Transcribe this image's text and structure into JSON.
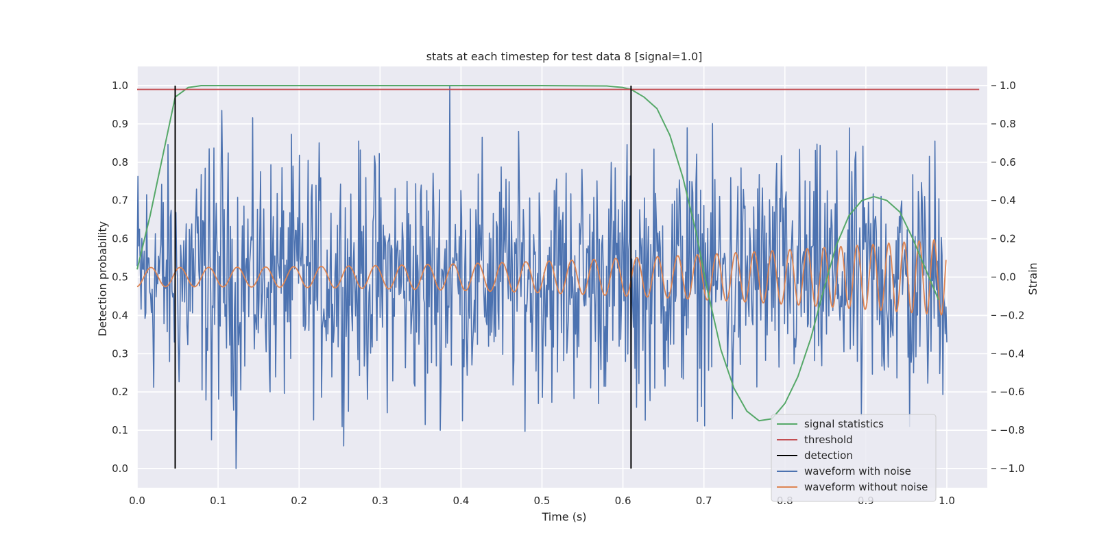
{
  "chart_data": {
    "type": "line",
    "title": "stats at each timestep for test data 8 [signal=1.0]",
    "xlabel": "Time (s)",
    "ylabel_left": "Detection probability",
    "ylabel_right": "Strain",
    "xlim": [
      0.0,
      1.05
    ],
    "ylim_left": [
      -0.05,
      1.05
    ],
    "ylim_right": [
      -1.1,
      1.1
    ],
    "x_ticks": [
      "0.0",
      "0.1",
      "0.2",
      "0.3",
      "0.4",
      "0.5",
      "0.6",
      "0.7",
      "0.8",
      "0.9",
      "1.0"
    ],
    "y_ticks_left": [
      "0.0",
      "0.1",
      "0.2",
      "0.3",
      "0.4",
      "0.5",
      "0.6",
      "0.7",
      "0.8",
      "0.9",
      "1.0"
    ],
    "y_ticks_right": [
      "−1.0",
      "−0.8",
      "−0.6",
      "−0.4",
      "−0.2",
      "0.0",
      "0.2",
      "0.4",
      "0.6",
      "0.8",
      "1.0"
    ],
    "grid": true,
    "legend_position": "lower-right",
    "legend": [
      {
        "label": "signal statistics",
        "color": "#55a868"
      },
      {
        "label": "threshold",
        "color": "#c44e52"
      },
      {
        "label": "detection",
        "color": "#000000"
      },
      {
        "label": "waveform with noise",
        "color": "#4c72b0"
      },
      {
        "label": "waveform without noise",
        "color": "#dd8452"
      }
    ],
    "signal_statistics": {
      "axis": "left",
      "x": [
        0.0,
        0.016,
        0.032,
        0.047,
        0.063,
        0.079,
        0.1,
        0.2,
        0.3,
        0.4,
        0.5,
        0.58,
        0.6,
        0.61,
        0.626,
        0.642,
        0.658,
        0.674,
        0.69,
        0.705,
        0.721,
        0.737,
        0.753,
        0.768,
        0.784,
        0.8,
        0.816,
        0.832,
        0.847,
        0.863,
        0.879,
        0.895,
        0.91,
        0.926,
        0.942,
        0.958,
        0.974,
        0.99
      ],
      "y": [
        0.52,
        0.66,
        0.82,
        0.97,
        0.995,
        1.0,
        1.0,
        1.0,
        1.0,
        1.0,
        1.0,
        0.999,
        0.995,
        0.99,
        0.97,
        0.94,
        0.87,
        0.76,
        0.62,
        0.46,
        0.31,
        0.21,
        0.15,
        0.125,
        0.13,
        0.17,
        0.24,
        0.34,
        0.46,
        0.58,
        0.66,
        0.7,
        0.71,
        0.7,
        0.67,
        0.6,
        0.52,
        0.44
      ]
    },
    "threshold": {
      "axis": "left",
      "value": 0.99,
      "x_range": [
        0.0,
        1.04
      ]
    },
    "detections": {
      "axis": "left",
      "x": [
        0.047,
        0.61
      ],
      "y_range": [
        0.0,
        1.0
      ]
    },
    "waveform_with_noise": {
      "axis": "right",
      "note_points": "noisy strain, roughly uniform scatter within about ±0.5 with spikes",
      "x_range": [
        0.0,
        1.0
      ],
      "n_points": 1024,
      "extremes": [
        {
          "x": 0.089,
          "y": 0.67
        },
        {
          "x": 0.092,
          "y": -0.85
        },
        {
          "x": 0.105,
          "y": 0.87
        },
        {
          "x": 0.122,
          "y": -1.0
        },
        {
          "x": 0.386,
          "y": 1.0
        },
        {
          "x": 0.356,
          "y": -0.77
        },
        {
          "x": 0.617,
          "y": -0.68
        },
        {
          "x": 0.679,
          "y": 0.78
        },
        {
          "x": 0.735,
          "y": -0.74
        },
        {
          "x": 0.894,
          "y": -0.72
        },
        {
          "x": 0.954,
          "y": -0.78
        },
        {
          "x": 0.985,
          "y": 0.71
        }
      ]
    },
    "waveform_without_noise": {
      "axis": "right",
      "x_range": [
        0.0,
        0.999
      ],
      "description_values": {
        "amp_start": 0.05,
        "amp_end": 0.2,
        "freq_start_hz": 28,
        "freq_end_hz": 56
      }
    }
  }
}
